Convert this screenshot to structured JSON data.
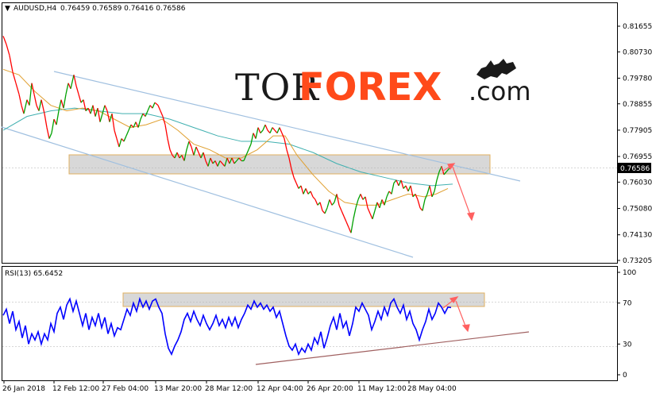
{
  "header": {
    "symbol": "AUDUSD,H4",
    "ohlc": "0.76459 0.76589 0.76416 0.76586",
    "arrow_glyph": "▼"
  },
  "rsi_header": "RSI(13) 65.6452",
  "current_price_label": "0.76586",
  "logo": {
    "part1": "TOR",
    "part2": "FOREX",
    "part3": ".com"
  },
  "colors": {
    "bull": "#00a000",
    "bear": "#ff0000",
    "ma_fast": "#e0a030",
    "ma_slow": "#40b0b0",
    "rsi": "#0000ff",
    "channel": "#a0c0e0",
    "zone_fill": "#d8d8d8",
    "zone_stroke": "#e0b060",
    "arrow": "#ff6060",
    "trendline": "#a06060"
  },
  "chart_data": {
    "type": "line",
    "title": "",
    "price_axis_ticks": [
      "0.81655",
      "0.80730",
      "0.79780",
      "0.78855",
      "0.77905",
      "0.76955",
      "0.76030",
      "0.75080",
      "0.74130",
      "0.73205"
    ],
    "price_ylim": [
      0.732,
      0.8165
    ],
    "rsi_axis_ticks": [
      "100",
      "70",
      "30",
      "0"
    ],
    "rsi_ylim": [
      0,
      100
    ],
    "x_labels": [
      "26 Jan 2018",
      "12 Feb 12:00",
      "27 Feb 04:00",
      "13 Mar 20:00",
      "28 Mar 12:00",
      "12 Apr 04:00",
      "26 Apr 20:00",
      "11 May 12:00",
      "28 May 04:00"
    ],
    "price_path": [
      [
        0,
        0.813
      ],
      [
        4,
        0.81
      ],
      [
        8,
        0.806
      ],
      [
        12,
        0.8
      ],
      [
        16,
        0.796
      ],
      [
        20,
        0.792
      ],
      [
        23,
        0.788
      ],
      [
        26,
        0.785
      ],
      [
        30,
        0.79
      ],
      [
        33,
        0.788
      ],
      [
        36,
        0.796
      ],
      [
        39,
        0.792
      ],
      [
        42,
        0.788
      ],
      [
        45,
        0.786
      ],
      [
        48,
        0.79
      ],
      [
        52,
        0.785
      ],
      [
        55,
        0.78
      ],
      [
        58,
        0.776
      ],
      [
        61,
        0.778
      ],
      [
        64,
        0.783
      ],
      [
        67,
        0.781
      ],
      [
        70,
        0.786
      ],
      [
        73,
        0.79
      ],
      [
        76,
        0.787
      ],
      [
        79,
        0.792
      ],
      [
        82,
        0.796
      ],
      [
        85,
        0.794
      ],
      [
        89,
        0.799
      ],
      [
        92,
        0.795
      ],
      [
        95,
        0.792
      ],
      [
        98,
        0.789
      ],
      [
        101,
        0.79
      ],
      [
        104,
        0.786
      ],
      [
        107,
        0.787
      ],
      [
        110,
        0.785
      ],
      [
        113,
        0.788
      ],
      [
        116,
        0.784
      ],
      [
        119,
        0.787
      ],
      [
        122,
        0.782
      ],
      [
        125,
        0.785
      ],
      [
        128,
        0.788
      ],
      [
        131,
        0.786
      ],
      [
        134,
        0.782
      ],
      [
        137,
        0.785
      ],
      [
        140,
        0.779
      ],
      [
        143,
        0.776
      ],
      [
        146,
        0.773
      ],
      [
        149,
        0.776
      ],
      [
        152,
        0.775
      ],
      [
        155,
        0.777
      ],
      [
        158,
        0.779
      ],
      [
        161,
        0.781
      ],
      [
        164,
        0.78
      ],
      [
        167,
        0.782
      ],
      [
        170,
        0.78
      ],
      [
        173,
        0.783
      ],
      [
        176,
        0.785
      ],
      [
        179,
        0.784
      ],
      [
        182,
        0.786
      ],
      [
        185,
        0.788
      ],
      [
        188,
        0.787
      ],
      [
        191,
        0.789
      ],
      [
        195,
        0.788
      ],
      [
        198,
        0.786
      ],
      [
        201,
        0.784
      ],
      [
        204,
        0.781
      ],
      [
        207,
        0.776
      ],
      [
        210,
        0.772
      ],
      [
        213,
        0.77
      ],
      [
        216,
        0.769
      ],
      [
        219,
        0.771
      ],
      [
        222,
        0.769
      ],
      [
        225,
        0.77
      ],
      [
        228,
        0.768
      ],
      [
        231,
        0.772
      ],
      [
        234,
        0.775
      ],
      [
        237,
        0.773
      ],
      [
        240,
        0.77
      ],
      [
        243,
        0.773
      ],
      [
        246,
        0.771
      ],
      [
        249,
        0.769
      ],
      [
        252,
        0.771
      ],
      [
        255,
        0.768
      ],
      [
        258,
        0.766
      ],
      [
        261,
        0.769
      ],
      [
        264,
        0.767
      ],
      [
        267,
        0.768
      ],
      [
        270,
        0.766
      ],
      [
        273,
        0.768
      ],
      [
        276,
        0.767
      ],
      [
        279,
        0.766
      ],
      [
        282,
        0.769
      ],
      [
        285,
        0.767
      ],
      [
        288,
        0.769
      ],
      [
        291,
        0.767
      ],
      [
        294,
        0.768
      ],
      [
        297,
        0.769
      ],
      [
        300,
        0.768
      ],
      [
        303,
        0.768
      ],
      [
        306,
        0.77
      ],
      [
        309,
        0.772
      ],
      [
        312,
        0.774
      ],
      [
        315,
        0.778
      ],
      [
        318,
        0.776
      ],
      [
        321,
        0.78
      ],
      [
        324,
        0.778
      ],
      [
        327,
        0.779
      ],
      [
        330,
        0.781
      ],
      [
        333,
        0.779
      ],
      [
        336,
        0.778
      ],
      [
        339,
        0.78
      ],
      [
        342,
        0.779
      ],
      [
        345,
        0.778
      ],
      [
        348,
        0.78
      ],
      [
        351,
        0.778
      ],
      [
        354,
        0.776
      ],
      [
        357,
        0.772
      ],
      [
        360,
        0.769
      ],
      [
        363,
        0.765
      ],
      [
        366,
        0.762
      ],
      [
        369,
        0.76
      ],
      [
        372,
        0.758
      ],
      [
        375,
        0.759
      ],
      [
        378,
        0.756
      ],
      [
        381,
        0.758
      ],
      [
        384,
        0.756
      ],
      [
        387,
        0.757
      ],
      [
        390,
        0.755
      ],
      [
        393,
        0.754
      ],
      [
        396,
        0.752
      ],
      [
        399,
        0.753
      ],
      [
        402,
        0.75
      ],
      [
        405,
        0.749
      ],
      [
        408,
        0.751
      ],
      [
        411,
        0.754
      ],
      [
        414,
        0.752
      ],
      [
        417,
        0.753
      ],
      [
        420,
        0.756
      ],
      [
        423,
        0.752
      ],
      [
        426,
        0.75
      ],
      [
        429,
        0.748
      ],
      [
        432,
        0.746
      ],
      [
        435,
        0.744
      ],
      [
        438,
        0.742
      ],
      [
        441,
        0.747
      ],
      [
        444,
        0.751
      ],
      [
        447,
        0.754
      ],
      [
        450,
        0.756
      ],
      [
        453,
        0.754
      ],
      [
        456,
        0.755
      ],
      [
        459,
        0.751
      ],
      [
        462,
        0.749
      ],
      [
        465,
        0.747
      ],
      [
        468,
        0.75
      ],
      [
        471,
        0.753
      ],
      [
        474,
        0.751
      ],
      [
        477,
        0.754
      ],
      [
        480,
        0.752
      ],
      [
        483,
        0.755
      ],
      [
        486,
        0.757
      ],
      [
        489,
        0.756
      ],
      [
        492,
        0.76
      ],
      [
        495,
        0.761
      ],
      [
        498,
        0.759
      ],
      [
        501,
        0.761
      ],
      [
        504,
        0.758
      ],
      [
        507,
        0.759
      ],
      [
        510,
        0.757
      ],
      [
        513,
        0.759
      ],
      [
        516,
        0.755
      ],
      [
        519,
        0.756
      ],
      [
        522,
        0.754
      ],
      [
        525,
        0.751
      ],
      [
        528,
        0.75
      ],
      [
        531,
        0.754
      ],
      [
        534,
        0.756
      ],
      [
        537,
        0.759
      ],
      [
        540,
        0.755
      ],
      [
        543,
        0.757
      ],
      [
        546,
        0.761
      ],
      [
        549,
        0.764
      ],
      [
        552,
        0.766
      ],
      [
        555,
        0.763
      ],
      [
        558,
        0.764
      ],
      [
        561,
        0.765
      ],
      [
        564,
        0.7659
      ]
    ],
    "ma_fast_path": [
      [
        0,
        0.801
      ],
      [
        20,
        0.799
      ],
      [
        40,
        0.793
      ],
      [
        60,
        0.788
      ],
      [
        80,
        0.786
      ],
      [
        100,
        0.787
      ],
      [
        120,
        0.786
      ],
      [
        140,
        0.783
      ],
      [
        160,
        0.78
      ],
      [
        180,
        0.781
      ],
      [
        200,
        0.783
      ],
      [
        220,
        0.779
      ],
      [
        240,
        0.774
      ],
      [
        260,
        0.772
      ],
      [
        280,
        0.769
      ],
      [
        300,
        0.769
      ],
      [
        320,
        0.772
      ],
      [
        340,
        0.777
      ],
      [
        355,
        0.777
      ],
      [
        370,
        0.77
      ],
      [
        390,
        0.763
      ],
      [
        410,
        0.757
      ],
      [
        430,
        0.753
      ],
      [
        450,
        0.752
      ],
      [
        470,
        0.752
      ],
      [
        490,
        0.754
      ],
      [
        510,
        0.756
      ],
      [
        530,
        0.755
      ],
      [
        545,
        0.756
      ],
      [
        560,
        0.758
      ]
    ],
    "ma_slow_path": [
      [
        0,
        0.779
      ],
      [
        30,
        0.784
      ],
      [
        60,
        0.786
      ],
      [
        90,
        0.787
      ],
      [
        120,
        0.786
      ],
      [
        150,
        0.785
      ],
      [
        180,
        0.785
      ],
      [
        210,
        0.783
      ],
      [
        240,
        0.78
      ],
      [
        270,
        0.777
      ],
      [
        300,
        0.775
      ],
      [
        330,
        0.775
      ],
      [
        360,
        0.774
      ],
      [
        390,
        0.771
      ],
      [
        420,
        0.767
      ],
      [
        450,
        0.764
      ],
      [
        480,
        0.762
      ],
      [
        510,
        0.76
      ],
      [
        540,
        0.759
      ],
      [
        566,
        0.7596
      ]
    ],
    "rsi_path": [
      [
        0,
        58
      ],
      [
        4,
        64
      ],
      [
        8,
        50
      ],
      [
        12,
        62
      ],
      [
        16,
        44
      ],
      [
        20,
        52
      ],
      [
        24,
        36
      ],
      [
        28,
        48
      ],
      [
        32,
        30
      ],
      [
        36,
        40
      ],
      [
        40,
        34
      ],
      [
        44,
        42
      ],
      [
        48,
        30
      ],
      [
        52,
        40
      ],
      [
        56,
        34
      ],
      [
        60,
        50
      ],
      [
        64,
        42
      ],
      [
        68,
        60
      ],
      [
        72,
        66
      ],
      [
        76,
        54
      ],
      [
        80,
        68
      ],
      [
        84,
        74
      ],
      [
        88,
        62
      ],
      [
        92,
        72
      ],
      [
        96,
        60
      ],
      [
        100,
        48
      ],
      [
        104,
        60
      ],
      [
        108,
        44
      ],
      [
        112,
        56
      ],
      [
        116,
        48
      ],
      [
        120,
        60
      ],
      [
        124,
        46
      ],
      [
        128,
        56
      ],
      [
        132,
        40
      ],
      [
        136,
        50
      ],
      [
        140,
        38
      ],
      [
        144,
        46
      ],
      [
        148,
        44
      ],
      [
        152,
        54
      ],
      [
        156,
        64
      ],
      [
        160,
        58
      ],
      [
        164,
        70
      ],
      [
        168,
        62
      ],
      [
        172,
        74
      ],
      [
        176,
        66
      ],
      [
        180,
        72
      ],
      [
        184,
        64
      ],
      [
        188,
        72
      ],
      [
        192,
        74
      ],
      [
        196,
        66
      ],
      [
        200,
        60
      ],
      [
        204,
        40
      ],
      [
        208,
        26
      ],
      [
        212,
        20
      ],
      [
        216,
        28
      ],
      [
        220,
        34
      ],
      [
        224,
        42
      ],
      [
        228,
        54
      ],
      [
        232,
        60
      ],
      [
        236,
        52
      ],
      [
        240,
        62
      ],
      [
        244,
        54
      ],
      [
        248,
        48
      ],
      [
        252,
        58
      ],
      [
        256,
        50
      ],
      [
        260,
        44
      ],
      [
        264,
        50
      ],
      [
        268,
        58
      ],
      [
        272,
        48
      ],
      [
        276,
        54
      ],
      [
        280,
        46
      ],
      [
        284,
        56
      ],
      [
        288,
        48
      ],
      [
        292,
        56
      ],
      [
        296,
        46
      ],
      [
        300,
        54
      ],
      [
        304,
        60
      ],
      [
        308,
        68
      ],
      [
        312,
        64
      ],
      [
        316,
        72
      ],
      [
        320,
        66
      ],
      [
        324,
        70
      ],
      [
        328,
        64
      ],
      [
        332,
        68
      ],
      [
        336,
        62
      ],
      [
        340,
        66
      ],
      [
        344,
        56
      ],
      [
        348,
        62
      ],
      [
        352,
        50
      ],
      [
        356,
        38
      ],
      [
        360,
        28
      ],
      [
        364,
        24
      ],
      [
        368,
        30
      ],
      [
        372,
        20
      ],
      [
        376,
        26
      ],
      [
        380,
        22
      ],
      [
        384,
        30
      ],
      [
        388,
        24
      ],
      [
        392,
        36
      ],
      [
        396,
        30
      ],
      [
        400,
        42
      ],
      [
        404,
        26
      ],
      [
        408,
        36
      ],
      [
        412,
        48
      ],
      [
        416,
        56
      ],
      [
        420,
        44
      ],
      [
        424,
        60
      ],
      [
        428,
        46
      ],
      [
        432,
        52
      ],
      [
        436,
        38
      ],
      [
        440,
        50
      ],
      [
        444,
        66
      ],
      [
        448,
        62
      ],
      [
        452,
        70
      ],
      [
        456,
        64
      ],
      [
        460,
        58
      ],
      [
        464,
        44
      ],
      [
        468,
        52
      ],
      [
        472,
        62
      ],
      [
        476,
        54
      ],
      [
        480,
        66
      ],
      [
        484,
        58
      ],
      [
        488,
        70
      ],
      [
        492,
        74
      ],
      [
        496,
        66
      ],
      [
        500,
        60
      ],
      [
        504,
        68
      ],
      [
        508,
        54
      ],
      [
        512,
        62
      ],
      [
        516,
        50
      ],
      [
        520,
        44
      ],
      [
        524,
        34
      ],
      [
        528,
        44
      ],
      [
        532,
        52
      ],
      [
        536,
        64
      ],
      [
        540,
        54
      ],
      [
        544,
        60
      ],
      [
        548,
        70
      ],
      [
        552,
        66
      ],
      [
        556,
        60
      ],
      [
        560,
        66
      ],
      [
        564,
        65.6
      ]
    ]
  }
}
